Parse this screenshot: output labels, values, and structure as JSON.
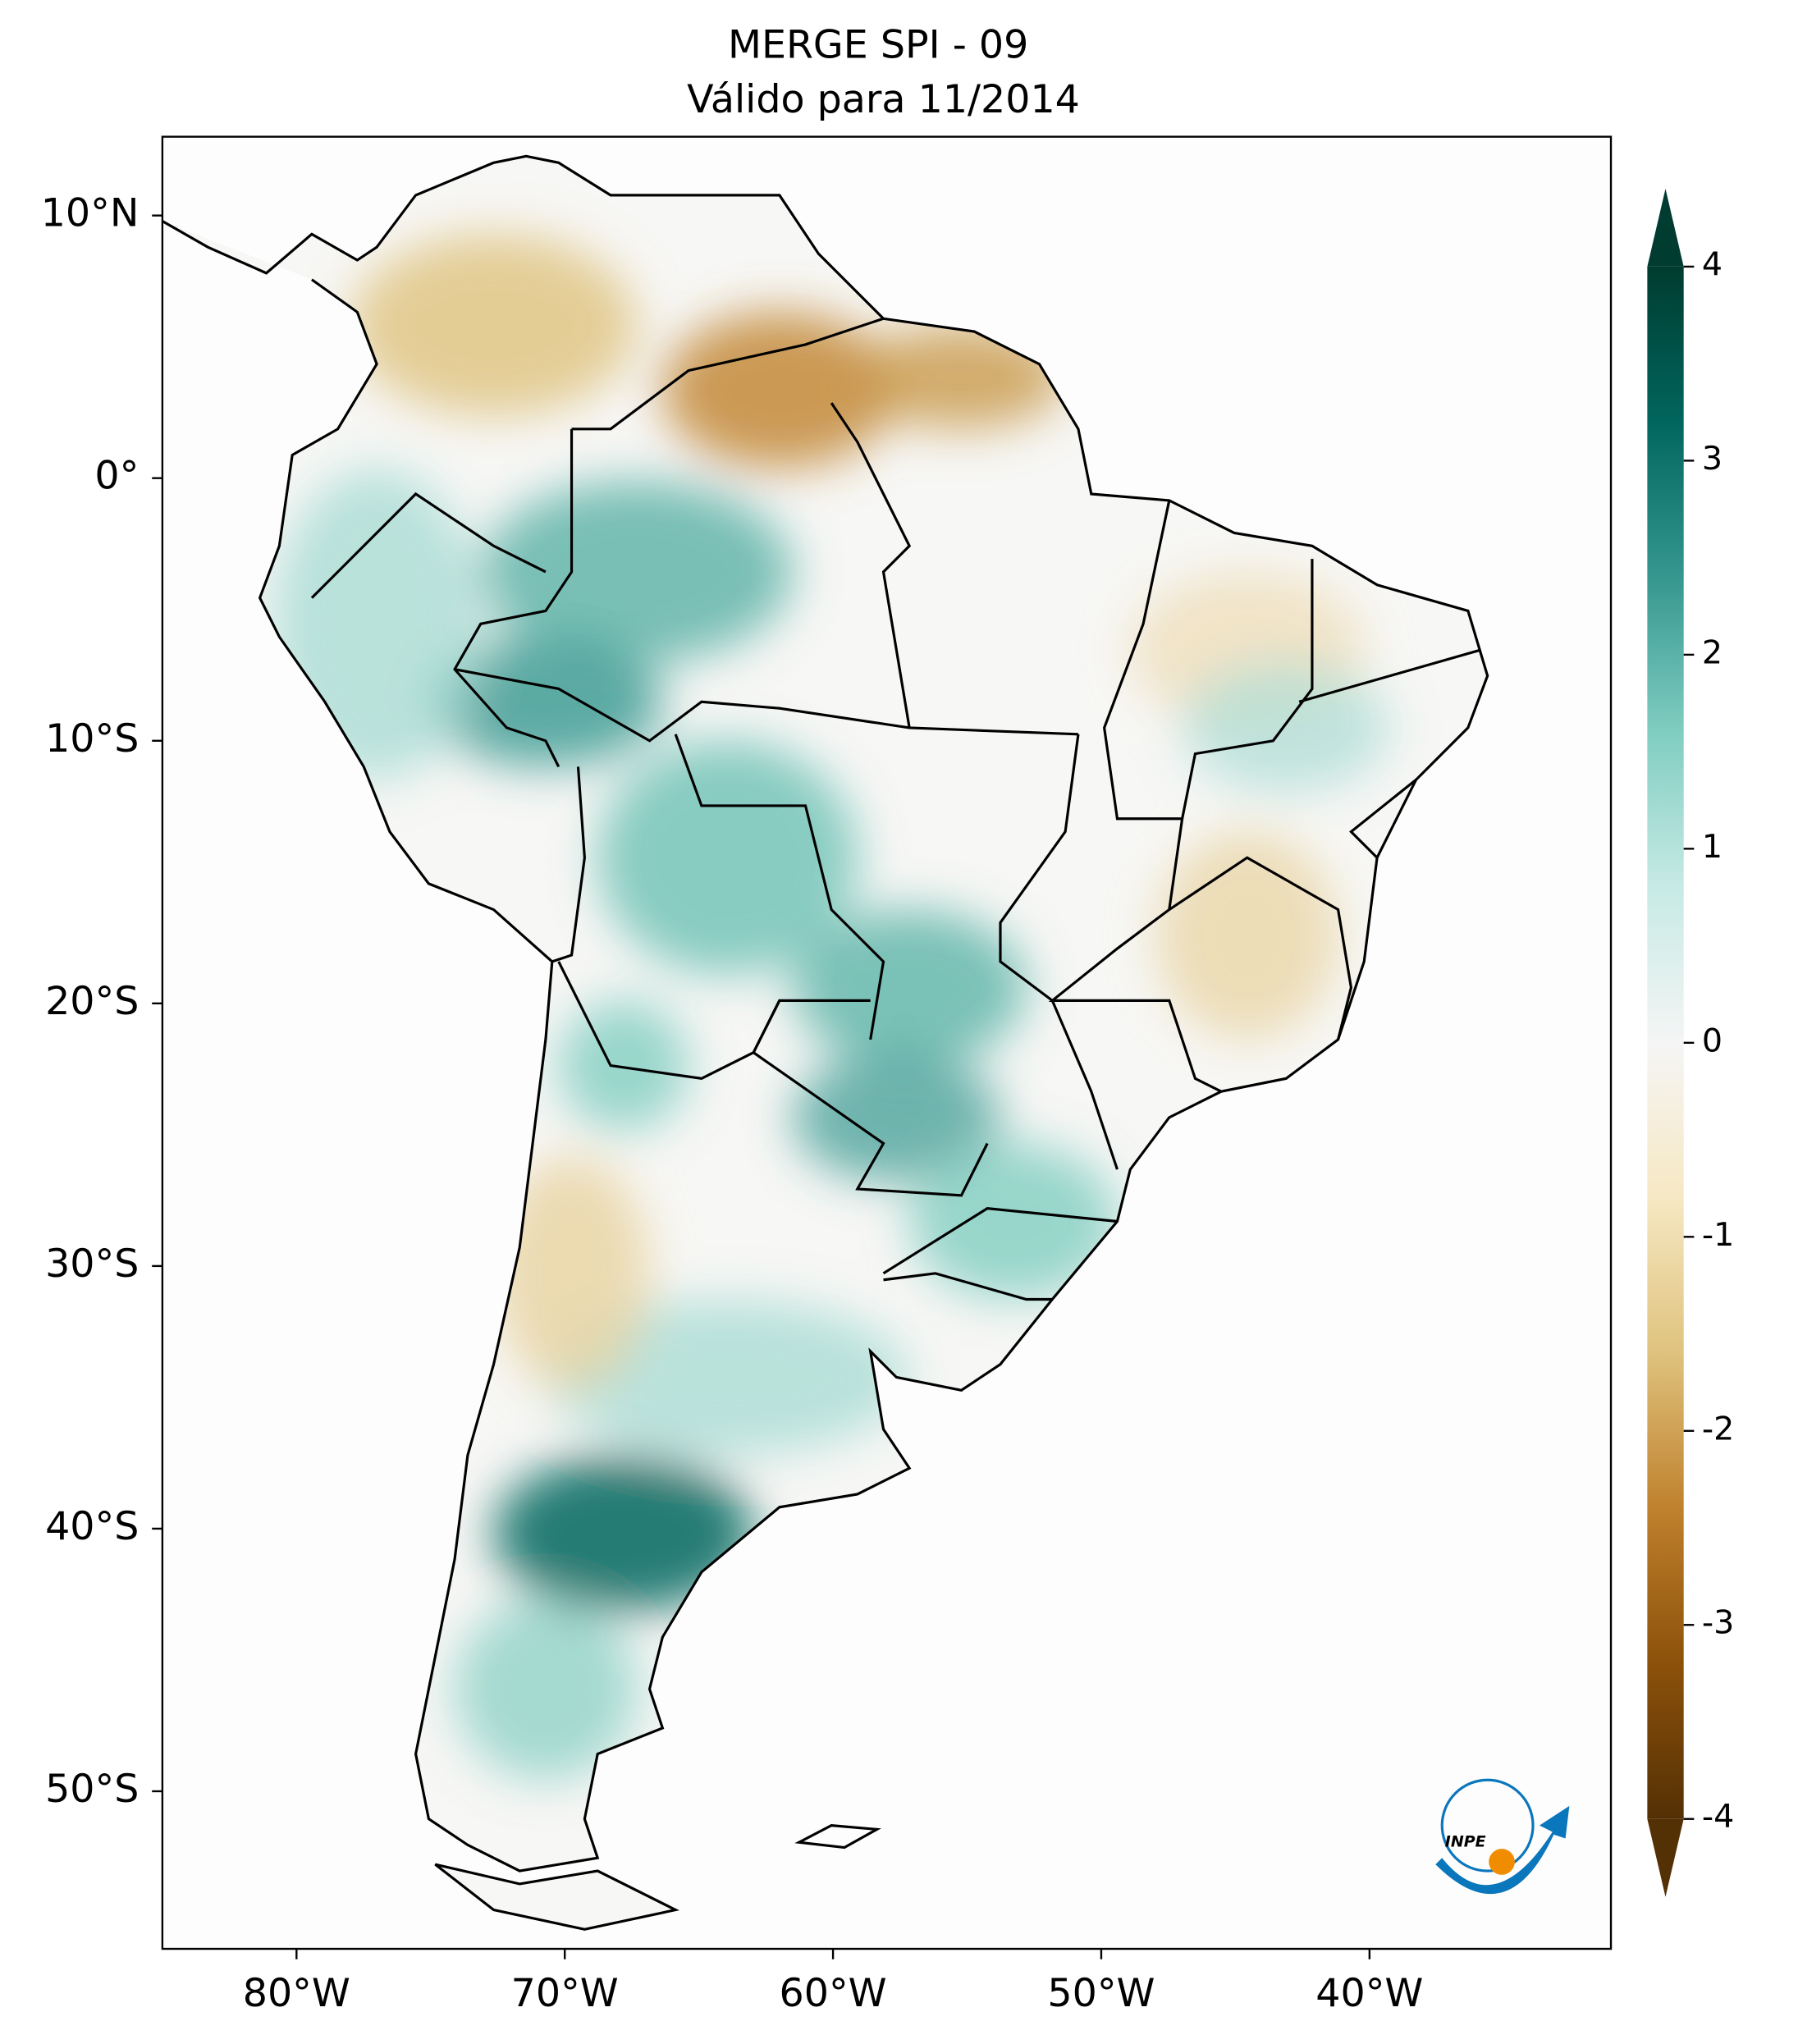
{
  "header": {
    "title": "MERGE   SPI - 09",
    "subtitle": "Válido para 11/2014"
  },
  "map": {
    "xlim": [
      -85,
      -31
    ],
    "ylim": [
      -56,
      13
    ],
    "lon_ticks": [
      {
        "value": -80,
        "label": "80°W"
      },
      {
        "value": -70,
        "label": "70°W"
      },
      {
        "value": -60,
        "label": "60°W"
      },
      {
        "value": -50,
        "label": "50°W"
      },
      {
        "value": -40,
        "label": "40°W"
      }
    ],
    "lat_ticks": [
      {
        "value": 10,
        "label": "10°N"
      },
      {
        "value": 0,
        "label": "0°"
      },
      {
        "value": -10,
        "label": "10°S"
      },
      {
        "value": -20,
        "label": "20°S"
      },
      {
        "value": -30,
        "label": "30°S"
      },
      {
        "value": -40,
        "label": "40°S"
      },
      {
        "value": -50,
        "label": "50°S"
      }
    ]
  },
  "colorbar": {
    "lim": [
      -4,
      4
    ],
    "ticks": [
      -4,
      -3,
      -2,
      -1,
      0,
      1,
      2,
      3,
      4
    ],
    "colormap": [
      "#543005",
      "#8c510a",
      "#bf812d",
      "#dfc27d",
      "#f6e8c3",
      "#f5f5f5",
      "#c7eae5",
      "#80cdc1",
      "#35978f",
      "#01665e",
      "#003c30"
    ]
  },
  "logo": {
    "text": "INPE"
  }
}
